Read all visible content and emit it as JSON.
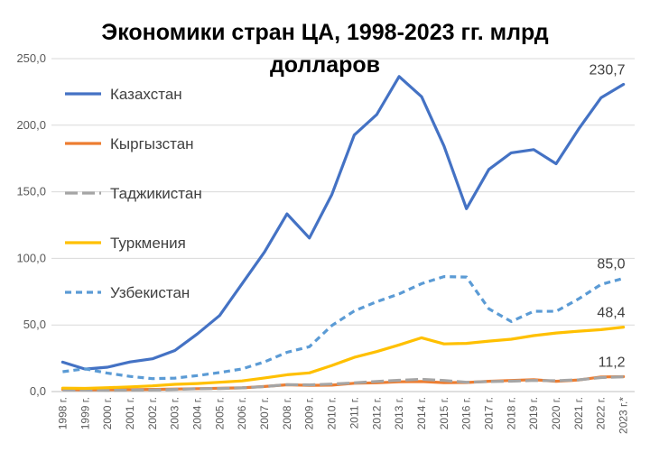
{
  "chart_data": {
    "type": "line",
    "title_lines": [
      "Экономики стран ЦА, 1998-2023 гг. млрд",
      "долларов"
    ],
    "x": [
      "1998 г.",
      "1999 г.",
      "2000 г.",
      "2001 г.",
      "2002 г.",
      "2003 г.",
      "2004 г.",
      "2005 г.",
      "2006 г.",
      "2007 г.",
      "2008 г.",
      "2009 г.",
      "2010 г.",
      "2011 г.",
      "2012 г.",
      "2013 г.",
      "2014 г.",
      "2015 г.",
      "2016 г.",
      "2017 г.",
      "2018 г.",
      "2019 г.",
      "2020 г.",
      "2021 г.",
      "2022 г.",
      "2023 г.*"
    ],
    "ylim": [
      0,
      250
    ],
    "yticks": [
      "0,0",
      "50,0",
      "100,0",
      "150,0",
      "200,0",
      "250,0"
    ],
    "grid": true,
    "legend_position": "top-left",
    "series": [
      {
        "name": "Казахстан",
        "color": "#4472c4",
        "style": "solid",
        "values": [
          22.1,
          16.9,
          18.3,
          22.2,
          24.6,
          30.8,
          43.2,
          57.1,
          81.0,
          104.8,
          133.4,
          115.3,
          148.0,
          192.6,
          208.0,
          236.6,
          221.4,
          184.4,
          137.3,
          166.8,
          179.3,
          181.7,
          171.1,
          197.1,
          220.6,
          230.7
        ],
        "end_label": "230,7"
      },
      {
        "name": "Кыргызстан",
        "color": "#ed7d31",
        "style": "solid",
        "values": [
          1.6,
          1.2,
          1.4,
          1.5,
          1.6,
          1.9,
          2.2,
          2.5,
          2.8,
          3.8,
          5.1,
          4.7,
          4.8,
          6.2,
          6.6,
          7.3,
          7.5,
          6.7,
          6.8,
          7.7,
          8.3,
          8.9,
          7.7,
          8.7,
          11.0,
          11.2
        ],
        "end_label": "11,2"
      },
      {
        "name": "Таджикистан",
        "color": "#a5a5a5",
        "style": "dashed-long",
        "values": [
          1.3,
          1.1,
          0.9,
          1.1,
          1.2,
          1.6,
          2.1,
          2.3,
          2.8,
          3.7,
          5.2,
          5.0,
          5.6,
          6.5,
          7.6,
          8.5,
          9.2,
          8.3,
          7.0,
          7.5,
          7.8,
          8.3,
          8.1,
          8.8,
          10.5,
          11.1
        ],
        "end_label": ""
      },
      {
        "name": "Туркмения",
        "color": "#ffc000",
        "style": "solid",
        "values": [
          2.6,
          2.4,
          2.9,
          3.5,
          4.3,
          5.4,
          6.0,
          7.0,
          8.0,
          10.2,
          12.6,
          14.0,
          19.6,
          25.7,
          30.0,
          35.0,
          40.4,
          35.8,
          36.2,
          37.9,
          39.3,
          42.0,
          44.0,
          45.3,
          46.5,
          48.4
        ],
        "end_label": "48,4"
      },
      {
        "name": "Узбекистан",
        "color": "#5b9bd5",
        "style": "dashed",
        "values": [
          14.9,
          17.1,
          13.8,
          11.4,
          9.7,
          10.1,
          12.0,
          14.3,
          17.0,
          22.3,
          29.5,
          33.7,
          49.6,
          60.5,
          67.5,
          73.3,
          81.0,
          86.3,
          86.0,
          62.1,
          52.6,
          60.3,
          60.2,
          69.6,
          80.4,
          85.0
        ],
        "end_label": "85,0"
      }
    ]
  }
}
